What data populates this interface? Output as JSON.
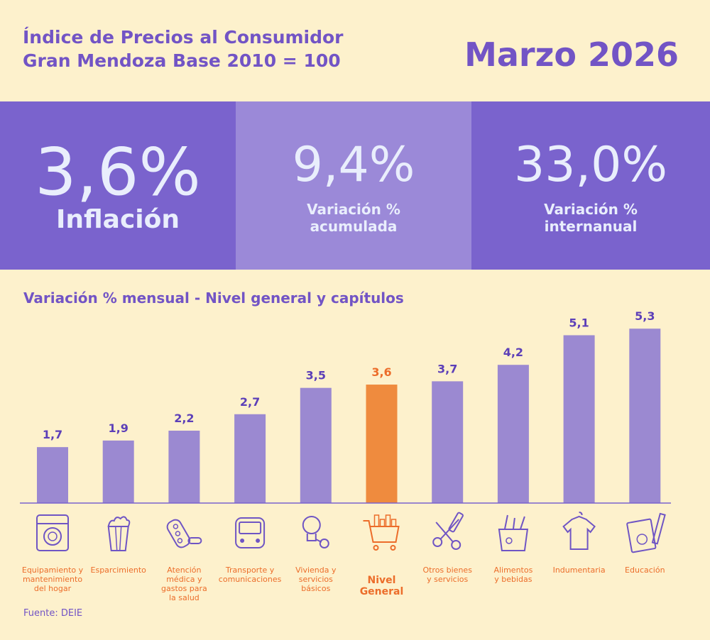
{
  "header": {
    "title_line1": "Índice de Precios al Consumidor",
    "title_line2": "Gran Mendoza Base 2010 = 100",
    "period": "Marzo 2026"
  },
  "kpis": [
    {
      "value": "3,6%",
      "label": "Inflación"
    },
    {
      "value": "9,4%",
      "label_line1": "Variación %",
      "label_line2": "acumulada"
    },
    {
      "value": "33,0%",
      "label_line1": "Variación %",
      "label_line2": "internanual"
    }
  ],
  "colors": {
    "bar": "#9b89d1",
    "highlight_bar": "#ef8b3e",
    "label_purple": "#5c3fb8",
    "label_orange": "#ec6d2a",
    "icon_purple": "#6f55c4"
  },
  "chart_data": {
    "type": "bar",
    "title": "Variación % mensual - Nivel general y capítulos",
    "categories": [
      "Equipamiento y mantenimiento del hogar",
      "Esparcimiento",
      "Atención médica y gastos para la salud",
      "Transporte y comunicaciones",
      "Vivienda y servicios básicos",
      "Nivel General",
      "Otros bienes y servicios",
      "Alimentos y bebidas",
      "Indumentaria",
      "Educación"
    ],
    "category_label_lines": [
      [
        "Equipamiento y",
        "mantenimiento",
        "del hogar"
      ],
      [
        "Esparcimiento"
      ],
      [
        "Atención",
        "médica y",
        "gastos para",
        "la salud"
      ],
      [
        "Transporte y",
        "comunicaciones"
      ],
      [
        "Vivienda y",
        "servicios",
        "básicos"
      ],
      [
        "Nivel",
        "General"
      ],
      [
        "Otros bienes",
        "y servicios"
      ],
      [
        "Alimentos",
        "y bebidas"
      ],
      [
        "Indumentaria"
      ],
      [
        "Educación"
      ]
    ],
    "values": [
      1.7,
      1.9,
      2.2,
      2.7,
      3.5,
      3.6,
      3.7,
      4.2,
      5.1,
      5.3
    ],
    "value_labels": [
      "1,7",
      "1,9",
      "2,2",
      "2,7",
      "3,5",
      "3,6",
      "3,7",
      "4,2",
      "5,1",
      "5,3"
    ],
    "highlight_index": 5,
    "icons": [
      "washing-machine-icon",
      "popcorn-icon",
      "pills-icon",
      "bus-icon",
      "lightbulb-key-icon",
      "shopping-cart-icon",
      "scissors-comb-icon",
      "grocery-bag-icon",
      "shirt-icon",
      "book-pencil-icon"
    ],
    "ylim": [
      0,
      5.8
    ],
    "grid": false,
    "legend": "none"
  },
  "footer": {
    "source": "Fuente: DEIE"
  }
}
